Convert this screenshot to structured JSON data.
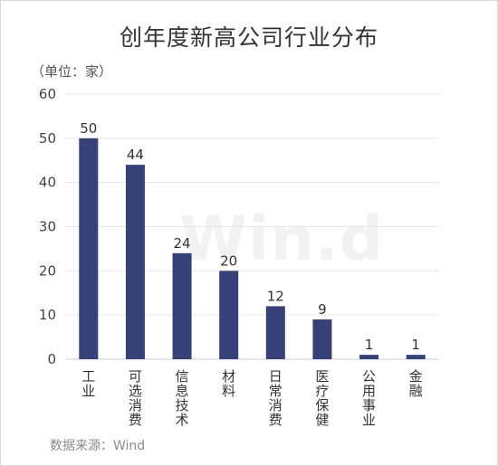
{
  "chart_data": {
    "type": "bar",
    "title": "创年度新高公司行业分布",
    "unit_label": "（单位：家）",
    "source": "数据来源：Wind",
    "watermark": "Win.d",
    "categories": [
      "工业",
      "可选消费",
      "信息技术",
      "材料",
      "日常消费",
      "医疗保健",
      "公用事业",
      "金融"
    ],
    "values": [
      50,
      44,
      24,
      20,
      12,
      9,
      1,
      1
    ],
    "ylim": [
      0,
      60
    ],
    "yticks": [
      0,
      10,
      20,
      30,
      40,
      50,
      60
    ],
    "bar_color": "#354177",
    "grid": true,
    "legend": "none"
  }
}
